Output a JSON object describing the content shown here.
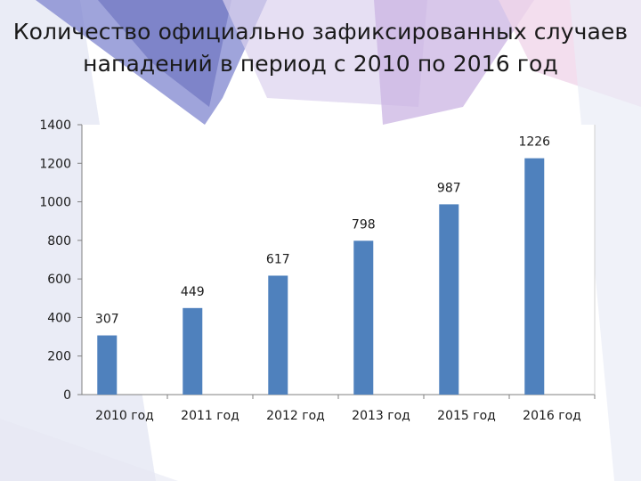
{
  "title_line1": "Количество официально зафиксированных случаев",
  "title_line2": "нападений в период с 2010 по 2016 год",
  "colors": {
    "bar": "#4f81bd",
    "axis": "#808080",
    "bg_blue": "#8f96d6",
    "bg_lilac": "#cdb6e6",
    "bg_pink": "#eccbe6"
  },
  "chart_data": {
    "type": "bar",
    "title": "Количество официально зафиксированных случаев нападений в период с 2010 по 2016 год",
    "categories": [
      "2010 год",
      "2011 год",
      "2012 год",
      "2013 год",
      "2015 год",
      "2016 год"
    ],
    "values": [
      307,
      449,
      617,
      798,
      987,
      1226
    ],
    "data_labels": [
      "307",
      "449",
      "617",
      "798",
      "987",
      "1226"
    ],
    "yticks": [
      0,
      200,
      400,
      600,
      800,
      1000,
      1200,
      1400
    ],
    "ylim": [
      0,
      1400
    ],
    "xlabel": "",
    "ylabel": "",
    "grid": false,
    "legend": "none"
  }
}
